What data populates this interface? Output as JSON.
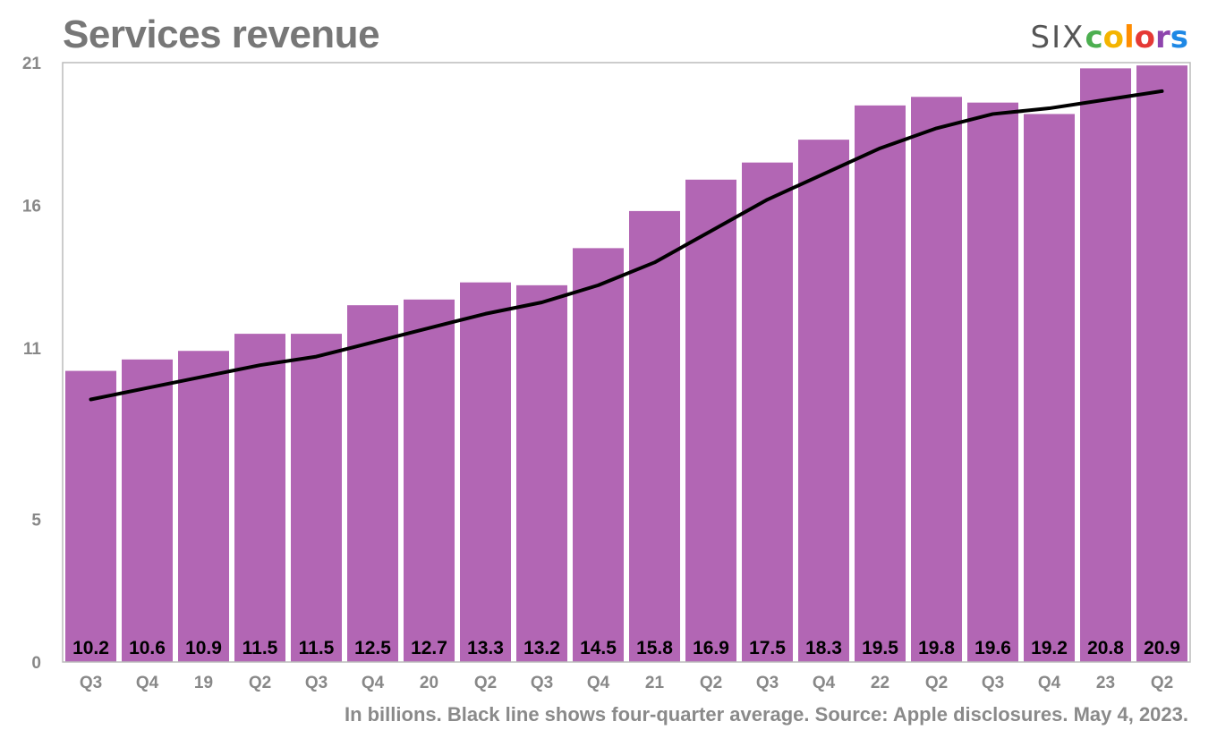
{
  "chart_data": {
    "type": "bar",
    "title": "Services revenue",
    "categories": [
      "Q3",
      "Q4",
      "19",
      "Q2",
      "Q3",
      "Q4",
      "20",
      "Q2",
      "Q3",
      "Q4",
      "21",
      "Q2",
      "Q3",
      "Q4",
      "22",
      "Q2",
      "Q3",
      "Q4",
      "23",
      "Q2"
    ],
    "values": [
      10.2,
      10.6,
      10.9,
      11.5,
      11.5,
      12.5,
      12.7,
      13.3,
      13.2,
      14.5,
      15.8,
      16.9,
      17.5,
      18.3,
      19.5,
      19.8,
      19.6,
      19.2,
      20.8,
      20.9
    ],
    "data_labels": [
      "10.2",
      "10.6",
      "10.9",
      "11.5",
      "11.5",
      "12.5",
      "12.7",
      "13.3",
      "13.2",
      "14.5",
      "15.8",
      "16.9",
      "17.5",
      "18.3",
      "19.5",
      "19.8",
      "19.6",
      "19.2",
      "20.8",
      "20.9"
    ],
    "line": {
      "description": "four-quarter average",
      "values": [
        9.2,
        9.6,
        10.0,
        10.4,
        10.7,
        11.2,
        11.7,
        12.2,
        12.6,
        13.2,
        14.0,
        15.1,
        16.2,
        17.1,
        18.0,
        18.7,
        19.2,
        19.4,
        19.7,
        20.0
      ]
    },
    "yticks": [
      0,
      5,
      11,
      16,
      21
    ],
    "ylim": [
      0,
      21
    ],
    "grid": false,
    "legend": "none",
    "xlabel": "",
    "ylabel": "",
    "footnote": "In billions. Black line shows four-quarter average. Source: Apple disclosures. May 4, 2023."
  },
  "logo": {
    "six": "SIX",
    "colors_letters": [
      {
        "ch": "c",
        "color": "#4caf50"
      },
      {
        "ch": "o",
        "color": "#f4b400"
      },
      {
        "ch": "l",
        "color": "#ff8c00"
      },
      {
        "ch": "o",
        "color": "#e53935"
      },
      {
        "ch": "r",
        "color": "#8e44ad"
      },
      {
        "ch": "s",
        "color": "#1e88e5"
      }
    ]
  },
  "colors": {
    "bar": "#b266b4",
    "line": "#000000",
    "axis_text": "#888888",
    "label_text": "#000000",
    "frame": "#bbbbbb"
  }
}
